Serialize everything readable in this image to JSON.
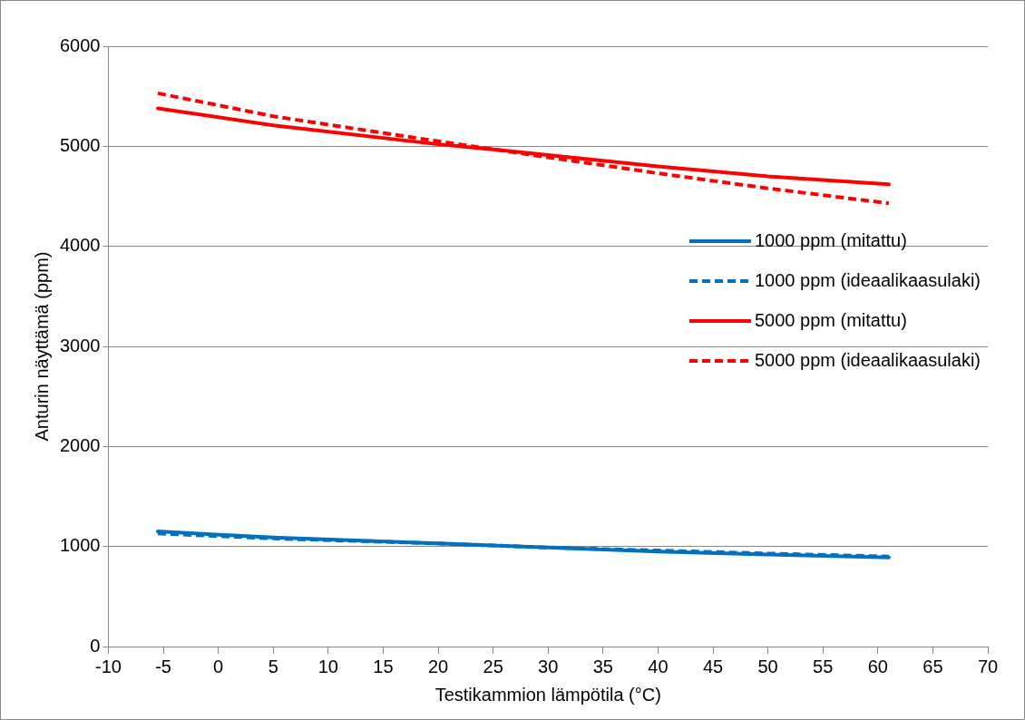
{
  "chart_data": {
    "type": "line",
    "xlabel": "Testikammion lämpötila (°C)",
    "ylabel": "Anturin näyttämä (ppm)",
    "xlim": [
      -10,
      70
    ],
    "xticks": [
      -10,
      -5,
      0,
      5,
      10,
      15,
      20,
      25,
      30,
      35,
      40,
      45,
      50,
      55,
      60,
      65,
      70
    ],
    "ylim": [
      0,
      6000
    ],
    "yticks": [
      0,
      1000,
      2000,
      3000,
      4000,
      5000,
      6000
    ],
    "grid": "y",
    "legend": "right",
    "marker": "none",
    "series": [
      {
        "name": "1000 ppm (mitattu)",
        "color": "#0070c0",
        "line_style": "solid",
        "x": [
          -5.5,
          5,
          20,
          30,
          40,
          50,
          61
        ],
        "values": [
          1150,
          1090,
          1030,
          990,
          950,
          920,
          890
        ]
      },
      {
        "name": "1000 ppm (ideaalikaasulaki)",
        "color": "#0070c0",
        "line_style": "dashed",
        "x": [
          -5.5,
          5,
          20,
          30,
          40,
          50,
          61
        ],
        "values": [
          1130,
          1080,
          1030,
          990,
          960,
          930,
          900
        ]
      },
      {
        "name": "5000 ppm (mitattu)",
        "color": "#ff0000",
        "line_style": "solid",
        "x": [
          -5.5,
          5,
          20,
          25,
          40,
          50,
          61
        ],
        "values": [
          5380,
          5210,
          5020,
          4970,
          4800,
          4700,
          4620
        ]
      },
      {
        "name": "5000 ppm (ideaalikaasulaki)",
        "color": "#ff0000",
        "line_style": "dashed",
        "x": [
          -5.5,
          5,
          20,
          25,
          40,
          50,
          61
        ],
        "values": [
          5530,
          5300,
          5050,
          4970,
          4730,
          4580,
          4430
        ]
      }
    ]
  }
}
